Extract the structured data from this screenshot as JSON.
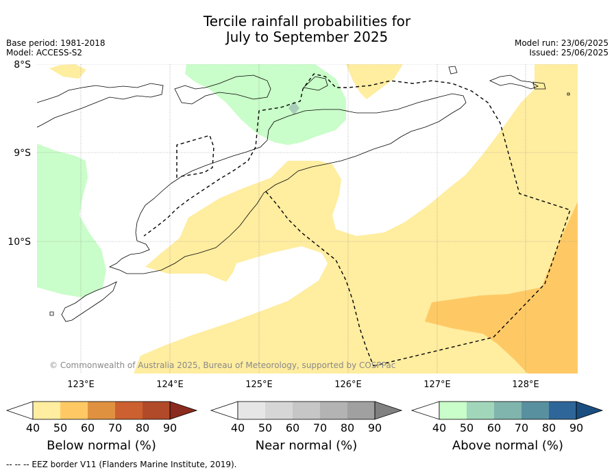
{
  "title_line1": "Tercile rainfall probabilities for",
  "title_line2": "July to September 2025",
  "base_period": "Base period: 1981-2018",
  "model": "Model: ACCESS-S2",
  "model_run": "Model run: 23/06/2025",
  "issued": "Issued: 25/06/2025",
  "copyright": "© Commonwealth of Australia 2025, Bureau of Meteorology, supported by COSPPac",
  "map": {
    "lat_labels": [
      "8°S",
      "9°S",
      "10°S"
    ],
    "lon_labels": [
      "123°E",
      "124°E",
      "125°E",
      "126°E",
      "127°E",
      "128°E"
    ]
  },
  "colorbars": [
    {
      "name": "Below normal (%)",
      "ticks": [
        "40",
        "50",
        "60",
        "70",
        "80",
        "90"
      ],
      "colors": [
        "#ffffff",
        "#ffeda0",
        "#fec965",
        "#e0913f",
        "#cc6030",
        "#b04a28",
        "#8b2a1e"
      ]
    },
    {
      "name": "Near normal (%)",
      "ticks": [
        "40",
        "50",
        "60",
        "70",
        "80",
        "90"
      ],
      "colors": [
        "#ffffff",
        "#e6e6e6",
        "#d6d6d6",
        "#c6c6c6",
        "#b3b3b3",
        "#a0a0a0",
        "#808080"
      ]
    },
    {
      "name": "Above normal (%)",
      "ticks": [
        "40",
        "50",
        "60",
        "70",
        "80",
        "90"
      ],
      "colors": [
        "#ffffff",
        "#c9fdc9",
        "#a1d6bb",
        "#7fb5ad",
        "#5990a0",
        "#2f6699",
        "#1a4d80"
      ]
    }
  ],
  "footer": "--  --  -- EEZ border V11 (Flanders Marine Institute, 2019)."
}
